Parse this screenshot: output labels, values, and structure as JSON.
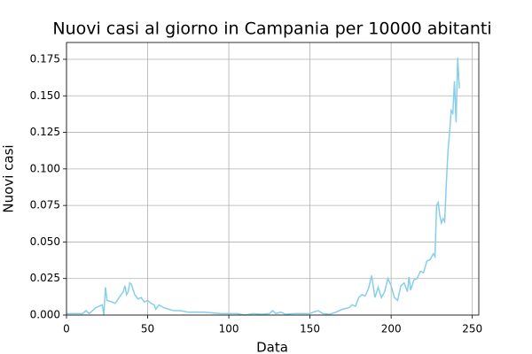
{
  "chart_data": {
    "type": "line",
    "title": "Nuovi casi al giorno in Campania per 10000 abitanti",
    "x_label": "Data",
    "y_label": "Nuovi casi",
    "grid": true,
    "xlim": [
      0,
      254
    ],
    "ylim": [
      0,
      0.1865
    ],
    "xticks": [
      0,
      50,
      100,
      150,
      200,
      250
    ],
    "yticks": [
      {
        "value": 0,
        "label": "0.000"
      },
      {
        "value": 0.025,
        "label": "0.025"
      },
      {
        "value": 0.05,
        "label": "0.050"
      },
      {
        "value": 0.075,
        "label": "0.075"
      },
      {
        "value": 0.1,
        "label": "0.100"
      },
      {
        "value": 0.125,
        "label": "0.125"
      },
      {
        "value": 0.15,
        "label": "0.150"
      },
      {
        "value": 0.175,
        "label": "0.175"
      }
    ],
    "series": [
      {
        "color": "#87ceeb",
        "x": [
          0,
          4,
          8,
          10,
          12,
          14,
          18,
          22,
          23,
          24,
          25,
          28,
          30,
          33,
          35,
          36,
          37,
          38,
          39,
          40,
          42,
          44,
          46,
          48,
          50,
          52,
          54,
          55,
          57,
          60,
          63,
          66,
          70,
          75,
          80,
          85,
          90,
          95,
          100,
          105,
          110,
          115,
          120,
          125,
          127,
          129,
          132,
          135,
          140,
          145,
          150,
          152,
          155,
          158,
          162,
          166,
          170,
          174,
          176,
          178,
          180,
          182,
          184,
          186,
          188,
          190,
          192,
          194,
          196,
          198,
          200,
          202,
          204,
          206,
          208,
          210,
          211,
          212,
          214,
          216,
          218,
          220,
          222,
          224,
          226,
          227,
          228,
          229,
          230,
          231,
          232,
          233,
          234,
          235,
          236,
          237,
          238,
          239,
          240,
          241,
          242
        ],
        "values": [
          0.001,
          0.001,
          0.001,
          0.001,
          0.003,
          0.001,
          0.005,
          0.007,
          0.0,
          0.019,
          0.01,
          0.009,
          0.008,
          0.013,
          0.016,
          0.02,
          0.014,
          0.016,
          0.022,
          0.021,
          0.014,
          0.011,
          0.012,
          0.009,
          0.01,
          0.008,
          0.007,
          0.004,
          0.007,
          0.005,
          0.004,
          0.003,
          0.003,
          0.002,
          0.002,
          0.002,
          0.0015,
          0.001,
          0.001,
          0.001,
          0.0,
          0.001,
          0.0005,
          0.001,
          0.003,
          0.001,
          0.002,
          0.0005,
          0.001,
          0.001,
          0.001,
          0.002,
          0.003,
          0.001,
          0.0005,
          0.002,
          0.004,
          0.005,
          0.007,
          0.006,
          0.012,
          0.014,
          0.013,
          0.018,
          0.027,
          0.012,
          0.019,
          0.012,
          0.016,
          0.025,
          0.02,
          0.012,
          0.01,
          0.02,
          0.022,
          0.016,
          0.026,
          0.017,
          0.024,
          0.025,
          0.03,
          0.029,
          0.037,
          0.038,
          0.042,
          0.04,
          0.075,
          0.077,
          0.068,
          0.063,
          0.066,
          0.064,
          0.09,
          0.112,
          0.125,
          0.14,
          0.138,
          0.16,
          0.132,
          0.176,
          0.155
        ]
      }
    ]
  }
}
